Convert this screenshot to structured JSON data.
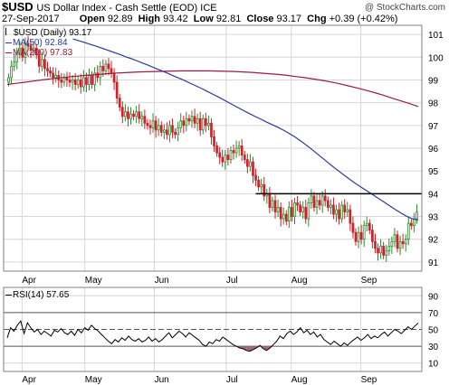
{
  "header": {
    "symbol": "$USD",
    "description": "US Dollar Index - Cash Settle (EOD) ICE",
    "copyright": "@ StockCharts.com",
    "date": "27-Sep-2017",
    "open_label": "Open",
    "open": "92.89",
    "high_label": "High",
    "high": "93.42",
    "low_label": "Low",
    "low": "92.81",
    "close_label": "Close",
    "close": "93.17",
    "chg_label": "Chg",
    "chg": "+0.39 (+0.42%)"
  },
  "legend": {
    "price": "$USD (Daily) 93.17",
    "ma50": "MA(50) 92.84",
    "ma200": "MA(200) 97.83",
    "rsi": "RSI(14) 57.65"
  },
  "colors": {
    "up": "#2e8b2e",
    "down": "#d0202a",
    "ma50": "#2a3a9a",
    "ma200": "#9b1b3b",
    "rsi_line": "#000000",
    "rsi_fill": "#9b6b73",
    "grid": "#d6d6d6",
    "frame": "#808080"
  },
  "chart_data": [
    {
      "type": "candlestick",
      "title": "$USD (Daily) 93.17",
      "x_range": [
        "2017-03-27",
        "2017-09-27"
      ],
      "ylim": [
        90.6,
        101.4
      ],
      "y_ticks": [
        91,
        92,
        93,
        94,
        95,
        96,
        97,
        98,
        99,
        100,
        101
      ],
      "x_tick_labels": [
        "Apr",
        "May",
        "Jun",
        "Jul",
        "Aug",
        "Sep"
      ],
      "x_tick_dates": [
        "2017-04-03",
        "2017-05-01",
        "2017-06-01",
        "2017-07-03",
        "2017-08-01",
        "2017-09-01"
      ],
      "grid": true,
      "horizontal_line": 94.0,
      "series": [
        {
          "name": "$USD (Daily) 93.17",
          "close": [
            99.1,
            99.6,
            99.8,
            100.2,
            100.4,
            100.0,
            100.6,
            100.5,
            100.3,
            100.4,
            100.1,
            99.6,
            99.9,
            99.5,
            99.4,
            99.3,
            99.1,
            99.2,
            99.0,
            98.9,
            99.1,
            99.0,
            98.9,
            99.0,
            98.8,
            99.0,
            98.7,
            99.1,
            98.8,
            99.2,
            98.8,
            99.3,
            99.1,
            99.6,
            99.4,
            99.7,
            99.5,
            99.3,
            98.9,
            98.2,
            97.8,
            97.4,
            97.6,
            97.3,
            97.5,
            97.4,
            97.6,
            97.3,
            97.4,
            97.1,
            97.0,
            96.9,
            97.2,
            96.8,
            97.0,
            96.7,
            96.8,
            96.6,
            97.0,
            96.7,
            96.6,
            96.9,
            97.2,
            97.0,
            97.3,
            97.2,
            97.4,
            97.1,
            97.3,
            96.8,
            97.3,
            97.0,
            97.1,
            96.5,
            96.1,
            95.8,
            95.6,
            95.4,
            95.7,
            95.5,
            95.9,
            95.8,
            96.0,
            96.1,
            95.7,
            95.5,
            95.2,
            95.4,
            94.8,
            94.6,
            94.3,
            94.4,
            93.9,
            94.0,
            93.4,
            93.7,
            93.2,
            93.4,
            92.9,
            93.1,
            92.8,
            93.4,
            93.0,
            93.6,
            93.5,
            93.2,
            93.4,
            92.9,
            93.6,
            93.9,
            93.4,
            93.7,
            93.5,
            93.9,
            93.7,
            93.4,
            93.5,
            93.1,
            93.3,
            92.9,
            93.5,
            93.2,
            93.3,
            92.7,
            92.3,
            91.9,
            92.3,
            92.0,
            92.6,
            92.7,
            92.4,
            91.9,
            91.6,
            91.4,
            91.7,
            91.3,
            91.5,
            91.7,
            91.9,
            92.2,
            91.6,
            91.9,
            91.8,
            92.0,
            92.7,
            92.6,
            92.9,
            93.2
          ]
        },
        {
          "name": "MA(50) 92.84",
          "values": [
            100.8,
            100.72,
            100.64,
            100.56,
            100.48,
            100.39,
            100.3,
            100.21,
            100.12,
            100.02,
            99.93,
            99.83,
            99.73,
            99.63,
            99.52,
            99.42,
            99.31,
            99.2,
            99.09,
            98.98,
            98.86,
            98.74,
            98.62,
            98.49,
            98.36,
            98.23,
            98.09,
            97.95,
            97.81,
            97.67,
            97.54,
            97.41,
            97.29,
            97.16,
            97.04,
            96.92,
            96.79,
            96.64,
            96.48,
            96.3,
            96.11,
            95.91,
            95.7,
            95.49,
            95.28,
            95.08,
            94.88,
            94.69,
            94.5,
            94.33,
            94.16,
            94.0,
            93.83,
            93.66,
            93.49,
            93.32,
            93.16,
            93.01,
            92.9,
            92.84
          ]
        },
        {
          "name": "MA(200) 97.83",
          "values": [
            98.8,
            98.85,
            98.9,
            98.95,
            99.0,
            99.05,
            99.09,
            99.13,
            99.17,
            99.2,
            99.23,
            99.26,
            99.29,
            99.31,
            99.33,
            99.35,
            99.36,
            99.37,
            99.38,
            99.39,
            99.4,
            99.4,
            99.4,
            99.4,
            99.39,
            99.38,
            99.37,
            99.35,
            99.33,
            99.3,
            99.27,
            99.24,
            99.2,
            99.15,
            99.1,
            99.04,
            98.98,
            98.91,
            98.83,
            98.74,
            98.65,
            98.55,
            98.44,
            98.33,
            98.2,
            98.08,
            97.96,
            97.83
          ]
        }
      ]
    },
    {
      "type": "line",
      "title": "RSI(14) 57.65",
      "ylim": [
        0,
        100
      ],
      "y_ticks": [
        10,
        30,
        50,
        70,
        90
      ],
      "reference_lines": [
        30,
        50,
        70
      ],
      "x_tick_labels": [
        "Apr",
        "May",
        "Jun",
        "Jul",
        "Aug",
        "Sep"
      ],
      "grid": true,
      "series": [
        {
          "name": "RSI(14) 57.65",
          "values": [
            40,
            52,
            48,
            55,
            60,
            45,
            58,
            52,
            47,
            50,
            44,
            48,
            45,
            42,
            49,
            47,
            51,
            46,
            44,
            48,
            43,
            50,
            46,
            52,
            49,
            55,
            51,
            48,
            44,
            40,
            36,
            33,
            38,
            35,
            40,
            37,
            42,
            38,
            36,
            39,
            35,
            37,
            41,
            36,
            39,
            35,
            38,
            42,
            46,
            40,
            44,
            48,
            45,
            41,
            46,
            43,
            40,
            37,
            32,
            30,
            35,
            33,
            38,
            36,
            41,
            38,
            35,
            32,
            30,
            28,
            27,
            25,
            24,
            26,
            28,
            31,
            27,
            25,
            28,
            32,
            36,
            42,
            39,
            45,
            48,
            44,
            47,
            52,
            46,
            49,
            44,
            47,
            41,
            44,
            38,
            35,
            32,
            36,
            33,
            30,
            34,
            31,
            35,
            38,
            41,
            37,
            40,
            44,
            39,
            42,
            40,
            44,
            47,
            42,
            46,
            50,
            48,
            45,
            49,
            53,
            50,
            54,
            57.65
          ]
        }
      ]
    }
  ]
}
